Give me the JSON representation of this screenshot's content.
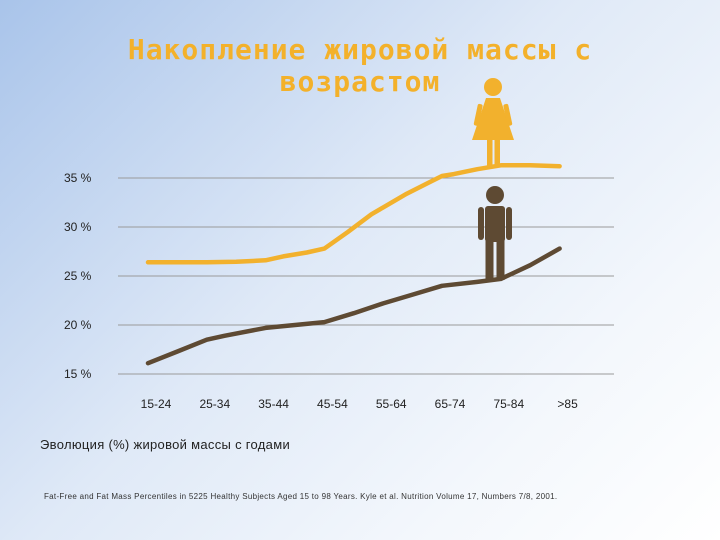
{
  "slide": {
    "title": "Накопление жировой массы с возрастом",
    "caption": "Эволюция  (%) жировой массы с годами",
    "source": "Fat-Free and Fat Mass Percentiles in 5225 Healthy Subjects Aged 15 to 98 Years. Kyle et al. Nutrition Volume 17, Numbers 7/8, 2001."
  },
  "chart_data": {
    "type": "line",
    "title": "Накопление жировой массы с возрастом",
    "categories": [
      "15-24",
      "25-34",
      "35-44",
      "45-54",
      "55-64",
      "65-74",
      "75-84",
      ">85"
    ],
    "y_ticks": [
      {
        "value": 15,
        "label": "15 %"
      },
      {
        "value": 20,
        "label": "20 %"
      },
      {
        "value": 25,
        "label": "25 %"
      },
      {
        "value": 30,
        "label": "30 %"
      },
      {
        "value": 35,
        "label": "35 %"
      }
    ],
    "ylim": [
      15,
      35
    ],
    "grid": true,
    "series": [
      {
        "icon": "woman-icon",
        "color": "#f2b12d",
        "x": [
          0,
          0.5,
          1,
          1.5,
          2,
          2.3,
          2.7,
          3,
          3.4,
          3.8,
          4,
          4.4,
          4.8,
          5,
          5.2,
          5.6,
          6,
          6.5,
          7
        ],
        "y": [
          26.4,
          26.4,
          26.4,
          26.45,
          26.6,
          27,
          27.4,
          27.8,
          29.5,
          31.3,
          32,
          33.4,
          34.6,
          35.2,
          35.4,
          35.9,
          36.3,
          36.3,
          36.2
        ]
      },
      {
        "icon": "man-icon",
        "color": "#5e4a33",
        "x": [
          0,
          0.5,
          1,
          1.3,
          2,
          2.5,
          3,
          3.5,
          4,
          4.5,
          5,
          5.6,
          6,
          6.5,
          7
        ],
        "y": [
          16.1,
          17.3,
          18.5,
          18.9,
          19.7,
          20,
          20.3,
          21.2,
          22.2,
          23.1,
          24,
          24.4,
          24.7,
          26.1,
          27.8
        ]
      }
    ]
  }
}
